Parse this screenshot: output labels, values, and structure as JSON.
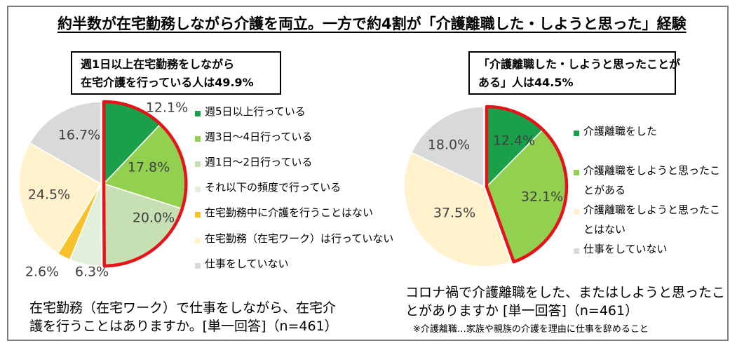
{
  "title": "約半数が在宅勤務しながら介護を両立。一方で約4割が「介護離職した・しようと思った」経験",
  "colors": {
    "dark_green": "#1aa04a",
    "green": "#92d050",
    "light_green": "#c6e0b4",
    "pale_green": "#e2efda",
    "gold": "#f6c12b",
    "cream": "#fff2cc",
    "gray": "#d9d9d9",
    "highlight": "#e4141a"
  },
  "chart_data": [
    {
      "type": "pie",
      "callout": [
        "週1日以上在宅勤務をしながら",
        "在宅介護を行っている人は49.9%"
      ],
      "question": [
        "在宅勤務（在宅ワーク）で仕事をしながら、在宅介",
        "護を行うことはありますか。[単一回答]（n=461）"
      ],
      "highlight_slices": [
        0,
        1,
        2
      ],
      "slices": [
        {
          "label": "週5日以上行っている",
          "value": 12.1,
          "display": "12.1%",
          "color": "#1aa04a"
        },
        {
          "label": "週3日～4日行っている",
          "value": 17.8,
          "display": "17.8%",
          "color": "#92d050"
        },
        {
          "label": "週1日～2日行っている",
          "value": 20.0,
          "display": "20.0%",
          "color": "#c6e0b4"
        },
        {
          "label": "それ以下の頻度で行っている",
          "value": 6.3,
          "display": "6.3%",
          "color": "#e2efda"
        },
        {
          "label": "在宅勤務中に介護を行うことはない",
          "value": 2.6,
          "display": "2.6%",
          "color": "#f6c12b"
        },
        {
          "label": "在宅勤務（在宅ワーク）は行っていない",
          "value": 24.5,
          "display": "24.5%",
          "color": "#fff2cc"
        },
        {
          "label": "仕事をしていない",
          "value": 16.7,
          "display": "16.7%",
          "color": "#d9d9d9"
        }
      ]
    },
    {
      "type": "pie",
      "callout": [
        "「介護離職した・しようと思ったことが",
        "ある」人は44.5%"
      ],
      "question": [
        "コロナ禍で介護離職をした、またはしようと思ったこ",
        "とがありますか [単一回答]（n=461）"
      ],
      "footnote": "※介護離職…家族や親族の介護を理由に仕事を辞めること",
      "highlight_slices": [
        0,
        1
      ],
      "slices": [
        {
          "label": "介護離職をした",
          "legend_lines": [
            "介護離職をした"
          ],
          "value": 12.4,
          "display": "12.4%",
          "color": "#1aa04a"
        },
        {
          "label": "介護離職をしようと思ったことがある",
          "legend_lines": [
            "介護離職をしようと思ったこ",
            "とがある"
          ],
          "value": 32.1,
          "display": "32.1%",
          "color": "#92d050"
        },
        {
          "label": "介護離職をしようと思ったことはない",
          "legend_lines": [
            "介護離職をしようと思ったこ",
            "とはない"
          ],
          "value": 37.5,
          "display": "37.5%",
          "color": "#fff2cc"
        },
        {
          "label": "仕事をしていない",
          "legend_lines": [
            "仕事をしていない"
          ],
          "value": 18.0,
          "display": "18.0%",
          "color": "#d9d9d9"
        }
      ]
    }
  ]
}
